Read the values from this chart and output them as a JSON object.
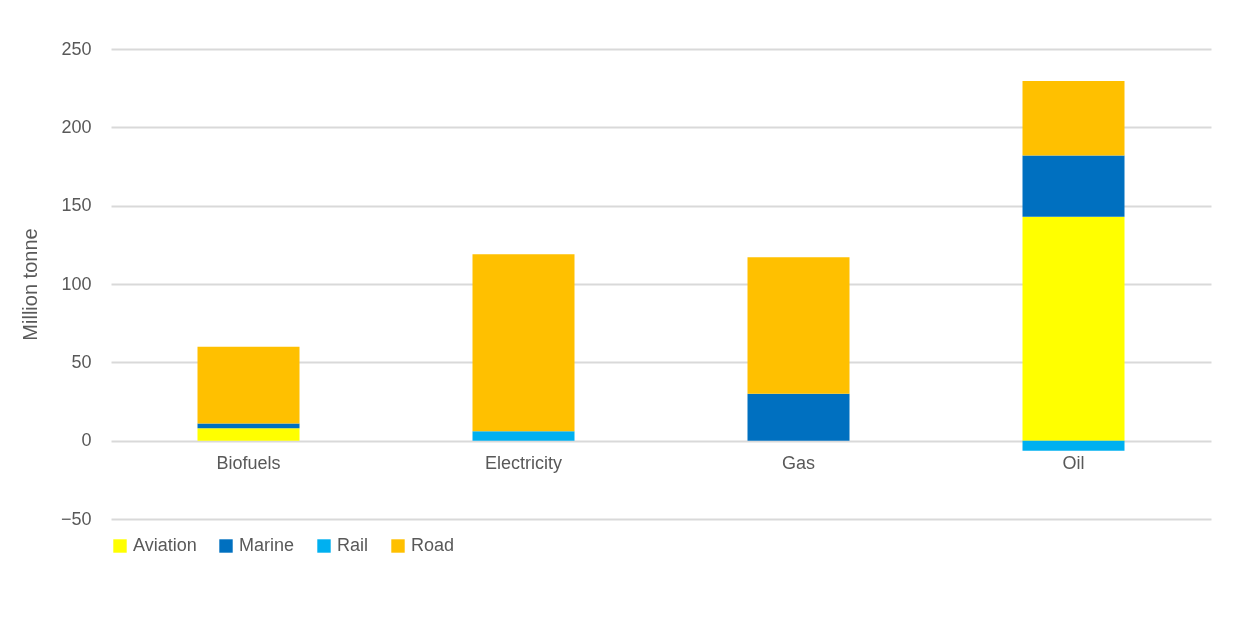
{
  "chart_data": {
    "type": "bar",
    "stacked": true,
    "ylabel": "Million tonne",
    "categories": [
      "Biofuels",
      "Electricity",
      "Gas",
      "Oil"
    ],
    "series": [
      {
        "name": "Aviation",
        "color": "#ffff00",
        "values": [
          8,
          null,
          null,
          143
        ]
      },
      {
        "name": "Marine",
        "color": "#0070c0",
        "values": [
          3,
          null,
          30,
          39
        ]
      },
      {
        "name": "Rail",
        "color": "#00b0f0",
        "values": [
          null,
          6,
          null,
          -6.5
        ]
      },
      {
        "name": "Road",
        "color": "#ffc000",
        "values": [
          49,
          113,
          87,
          47.5
        ]
      }
    ],
    "ylim": [
      -50,
      250
    ],
    "yticks": [
      -50,
      0,
      50,
      100,
      150,
      200,
      250
    ],
    "grid": "y",
    "legend": "bottom"
  }
}
